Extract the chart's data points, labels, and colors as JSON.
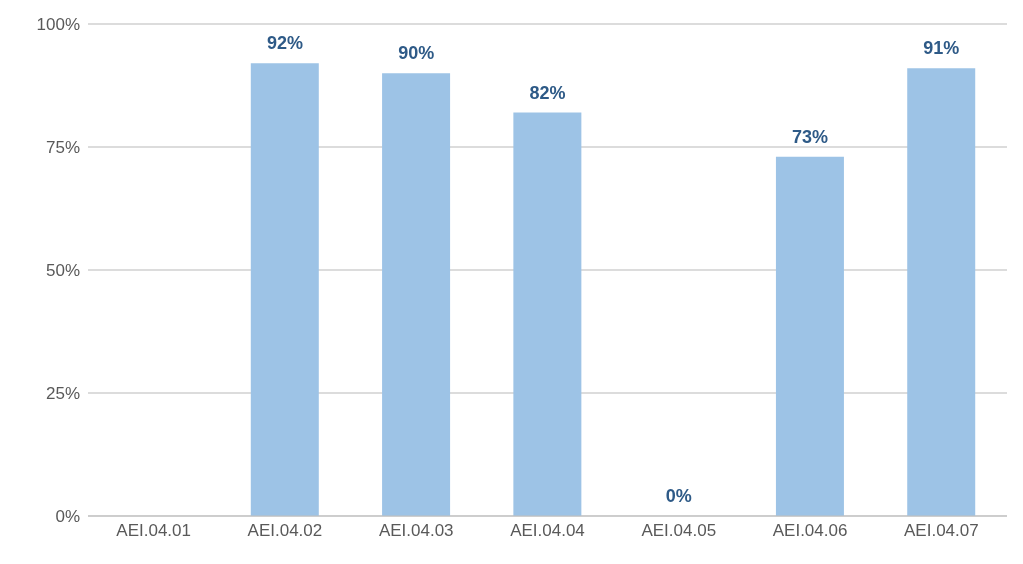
{
  "chart_data": {
    "type": "bar",
    "categories": [
      "AEI.04.01",
      "AEI.04.02",
      "AEI.04.03",
      "AEI.04.04",
      "AEI.04.05",
      "AEI.04.06",
      "AEI.04.07"
    ],
    "values": [
      null,
      92,
      90,
      82,
      0,
      73,
      91
    ],
    "value_labels": [
      null,
      "92%",
      "90%",
      "82%",
      "0%",
      "73%",
      "91%"
    ],
    "color": "#9dc3e6",
    "ylim": [
      0,
      100
    ],
    "yticks": [
      {
        "value": 0,
        "label": "0%"
      },
      {
        "value": 25,
        "label": "25%"
      },
      {
        "value": 50,
        "label": "50%"
      },
      {
        "value": 75,
        "label": "75%"
      },
      {
        "value": 100,
        "label": "100%"
      }
    ],
    "grid": "y",
    "legend": false
  }
}
